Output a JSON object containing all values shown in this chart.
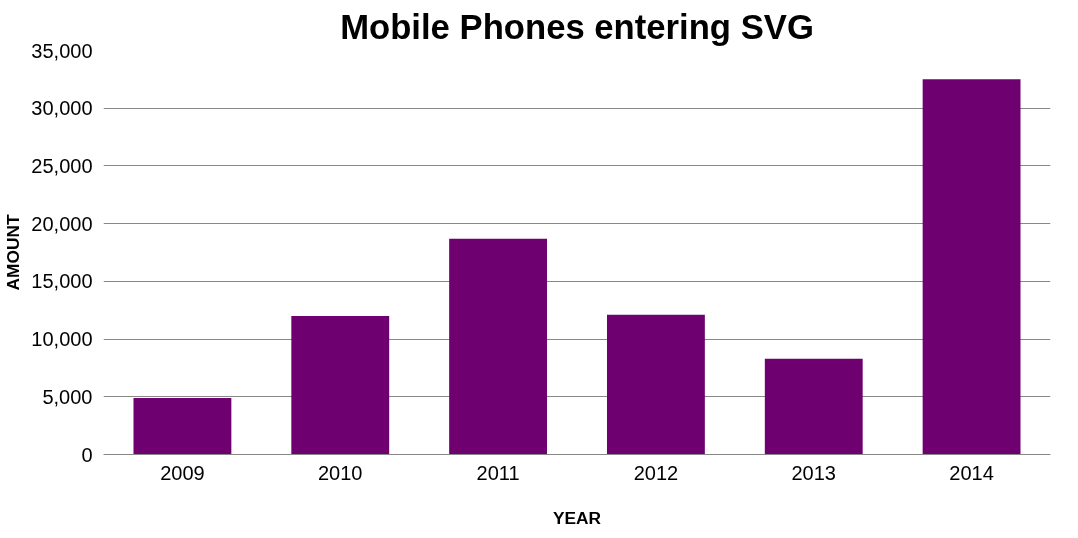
{
  "chart_data": {
    "type": "bar",
    "title": "Mobile Phones entering SVG",
    "xlabel": "YEAR",
    "ylabel": "AMOUNT",
    "categories": [
      "2009",
      "2010",
      "2011",
      "2012",
      "2013",
      "2014"
    ],
    "values": [
      4900,
      12000,
      18700,
      12100,
      8300,
      32500
    ],
    "color": "#6e006f",
    "ylim": [
      0,
      35000
    ],
    "yticks": [
      {
        "value": 0,
        "label": "0"
      },
      {
        "value": 5000,
        "label": "5,000"
      },
      {
        "value": 10000,
        "label": "10,000"
      },
      {
        "value": 15000,
        "label": "15,000"
      },
      {
        "value": 20000,
        "label": "20,000"
      },
      {
        "value": 25000,
        "label": "25,000"
      },
      {
        "value": 30000,
        "label": "30,000"
      },
      {
        "value": 35000,
        "label": "35,000"
      }
    ],
    "grid": "y"
  }
}
